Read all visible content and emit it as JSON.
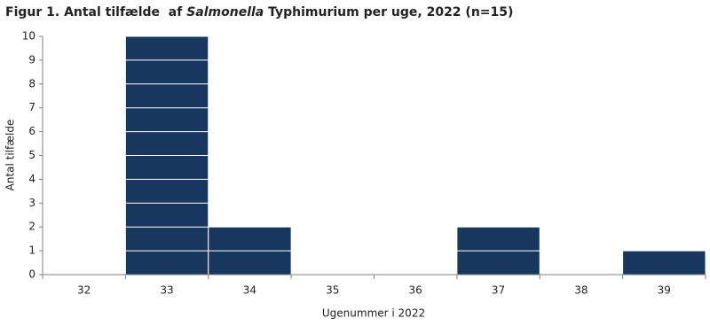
{
  "chart_data": {
    "type": "bar",
    "title": [
      "Figur 1. Antal tilfælde  af ",
      "Salmonella",
      " Typhimurium per uge, 2022 (n=15)"
    ],
    "x_label": "Ugenummer i 2022",
    "y_label": "Antal tilfælde",
    "categories": [
      "32",
      "33",
      "34",
      "35",
      "36",
      "37",
      "38",
      "39"
    ],
    "values": [
      0,
      10,
      2,
      0,
      0,
      2,
      0,
      1
    ],
    "color": "#17375e",
    "ylim": [
      0,
      10
    ],
    "yticks": [
      0,
      1,
      2,
      3,
      4,
      5,
      6,
      7,
      8,
      9,
      10
    ],
    "grid": false
  }
}
